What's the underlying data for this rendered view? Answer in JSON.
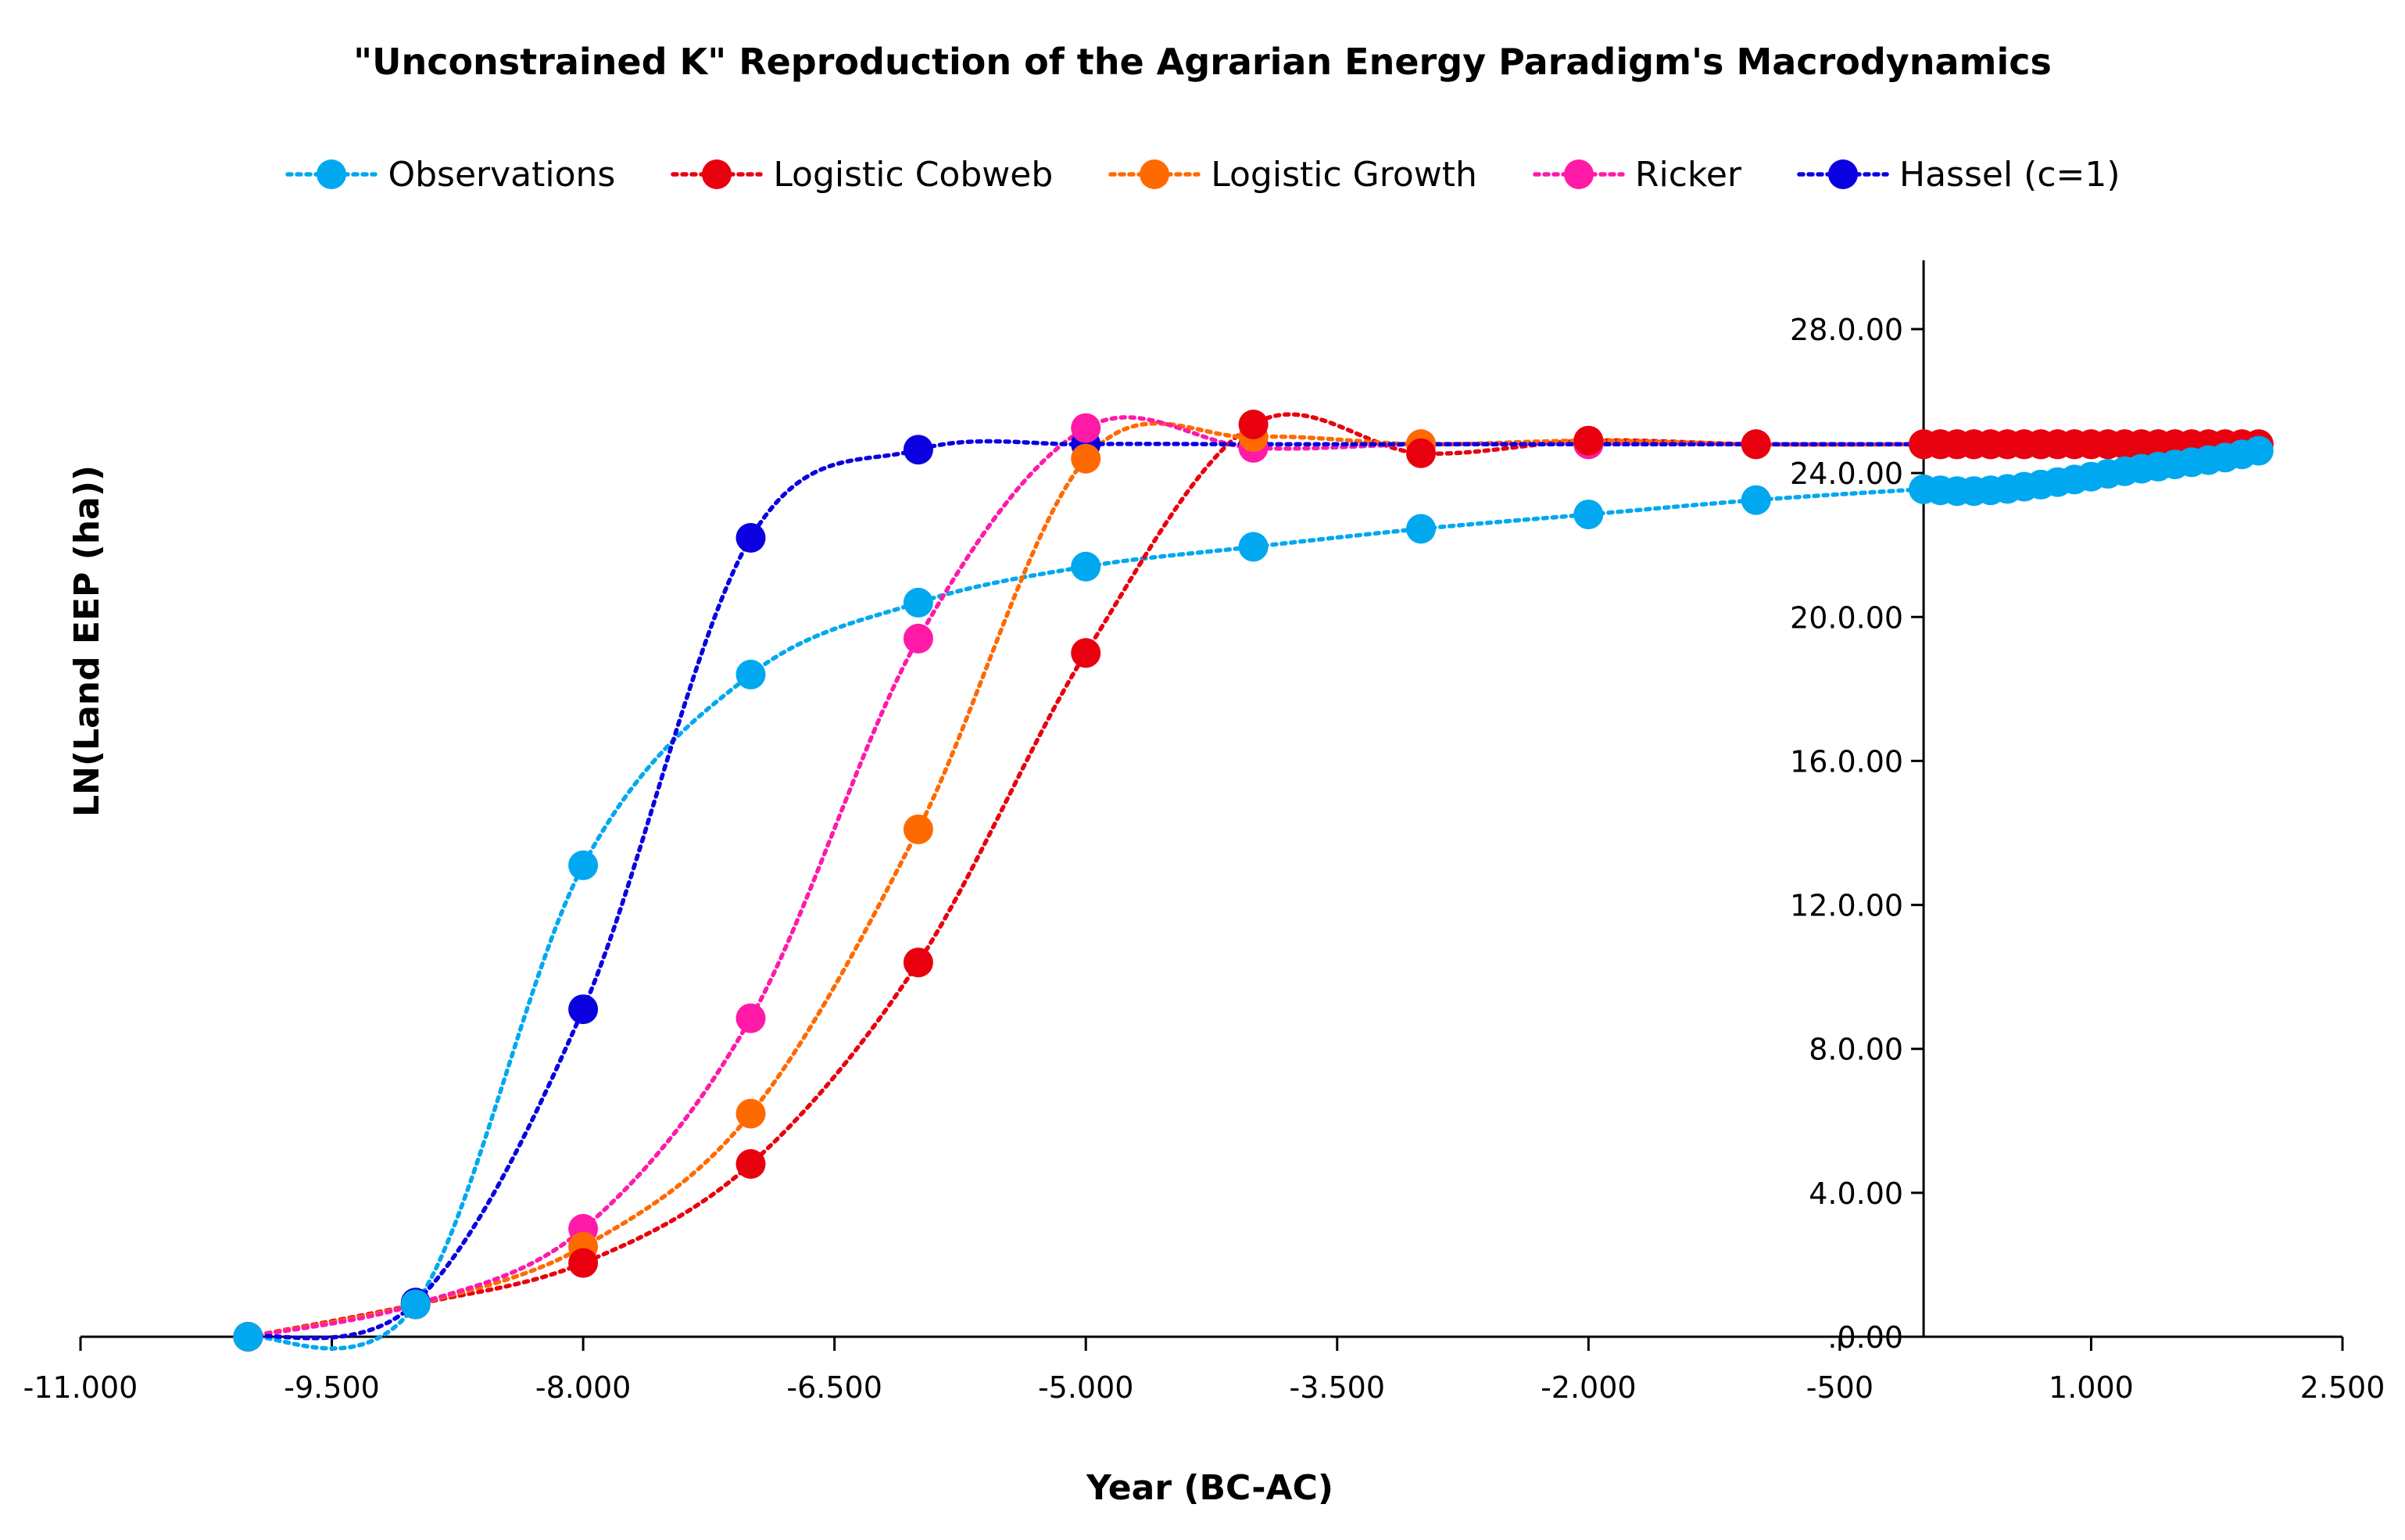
{
  "chart_data": {
    "type": "scatter",
    "title": "\"Unconstrained K\" Reproduction of the Agrarian Energy Paradigm's Macrodynamics",
    "xlabel": "Year (BC-AC)",
    "ylabel": "LN(Land EEP (ha))",
    "xlim": [
      -11000,
      2500
    ],
    "ylim": [
      0,
      28
    ],
    "x_ticks": [
      -11000,
      -9500,
      -8000,
      -6500,
      -5000,
      -3500,
      -2000,
      -500,
      1000,
      2500
    ],
    "x_tick_labels": [
      "-11.000",
      "-9.500",
      "-8.000",
      "-6.500",
      "-5.000",
      "-3.500",
      "-2.000",
      "-500",
      "1.000",
      "2.500"
    ],
    "y_ticks": [
      0,
      4,
      8,
      12,
      16,
      20,
      24,
      28
    ],
    "y_tick_labels": [
      ".0.00",
      "4.0.00",
      "8.0.00",
      "12.0.00",
      "16.0.00",
      "20.0.00",
      "24.0.00",
      "28.0.00"
    ],
    "y_axis_crosses_at_x": 0,
    "grid": false,
    "legend_position": "top",
    "line_style": "dotted smoothed",
    "series": [
      {
        "name": "Observations",
        "color": "#00a8f0",
        "x": [
          -10000,
          -9000,
          -8000,
          -7000,
          -6000,
          -5000,
          -4000,
          -3000,
          -2000,
          -1000,
          0,
          100,
          200,
          300,
          400,
          500,
          600,
          700,
          800,
          900,
          1000,
          1100,
          1200,
          1300,
          1400,
          1500,
          1600,
          1700,
          1800,
          1900,
          2000
        ],
        "y": [
          0.0,
          0.9,
          13.1,
          18.4,
          20.4,
          21.4,
          21.95,
          22.45,
          22.85,
          23.25,
          23.55,
          23.52,
          23.5,
          23.5,
          23.52,
          23.56,
          23.62,
          23.68,
          23.75,
          23.82,
          23.9,
          23.98,
          24.05,
          24.12,
          24.18,
          24.24,
          24.3,
          24.36,
          24.43,
          24.52,
          24.62
        ]
      },
      {
        "name": "Logistic Cobweb",
        "color": "#e8000f",
        "x": [
          -10000,
          -9000,
          -8000,
          -7000,
          -6000,
          -5000,
          -4000,
          -3000,
          -2000,
          -1000,
          0,
          100,
          200,
          300,
          400,
          500,
          600,
          700,
          800,
          900,
          1000,
          1100,
          1200,
          1300,
          1400,
          1500,
          1600,
          1700,
          1800,
          1900,
          2000
        ],
        "y": [
          0.0,
          0.9,
          2.05,
          4.8,
          10.4,
          19.0,
          25.35,
          24.55,
          24.9,
          24.8,
          24.8,
          24.8,
          24.8,
          24.8,
          24.8,
          24.8,
          24.8,
          24.8,
          24.8,
          24.8,
          24.8,
          24.8,
          24.8,
          24.8,
          24.8,
          24.8,
          24.8,
          24.8,
          24.8,
          24.8,
          24.8
        ]
      },
      {
        "name": "Logistic Growth",
        "color": "#ff6a00",
        "x": [
          -10000,
          -9000,
          -8000,
          -7000,
          -6000,
          -5000,
          -4000,
          -3000,
          -2000,
          -1000,
          0,
          100,
          200,
          300,
          400,
          500,
          600,
          700,
          800,
          900,
          1000,
          1100,
          1200,
          1300,
          1400,
          1500,
          1600,
          1700,
          1800,
          1900,
          2000
        ],
        "y": [
          0.0,
          0.9,
          2.5,
          6.2,
          14.1,
          24.4,
          25.0,
          24.8,
          24.9,
          24.8,
          24.8,
          24.8,
          24.8,
          24.8,
          24.8,
          24.8,
          24.8,
          24.8,
          24.8,
          24.8,
          24.8,
          24.8,
          24.8,
          24.8,
          24.8,
          24.8,
          24.8,
          24.8,
          24.8,
          24.8,
          24.8
        ]
      },
      {
        "name": "Ricker",
        "color": "#ff1aa8",
        "x": [
          -10000,
          -9000,
          -8000,
          -7000,
          -6000,
          -5000,
          -4000,
          -3000,
          -2000,
          -1000,
          0,
          100,
          200,
          300,
          400,
          500,
          600,
          700,
          800,
          900,
          1000,
          1100,
          1200,
          1300,
          1400,
          1500,
          1600,
          1700,
          1800,
          1900,
          2000
        ],
        "y": [
          0.0,
          0.9,
          3.0,
          8.85,
          19.4,
          25.25,
          24.7,
          24.8,
          24.8,
          24.8,
          24.8,
          24.8,
          24.8,
          24.8,
          24.8,
          24.8,
          24.8,
          24.8,
          24.8,
          24.8,
          24.8,
          24.8,
          24.8,
          24.8,
          24.8,
          24.8,
          24.8,
          24.8,
          24.8,
          24.8,
          24.8
        ]
      },
      {
        "name": "Hassel (c=1)",
        "color": "#0a00e0",
        "x": [
          -10000,
          -9000,
          -8000,
          -7000,
          -6000,
          -5000,
          -4000,
          -3000,
          -2000,
          -1000,
          0,
          100,
          200,
          300,
          400,
          500,
          600,
          700,
          800,
          900,
          1000,
          1100,
          1200,
          1300,
          1400,
          1500,
          1600,
          1700,
          1800,
          1900,
          2000
        ],
        "y": [
          0.0,
          0.95,
          9.1,
          22.2,
          24.65,
          24.8,
          24.8,
          24.8,
          24.8,
          24.8,
          24.8,
          24.8,
          24.8,
          24.8,
          24.8,
          24.8,
          24.8,
          24.8,
          24.8,
          24.8,
          24.8,
          24.8,
          24.8,
          24.8,
          24.8,
          24.8,
          24.8,
          24.8,
          24.8,
          24.8,
          24.8
        ]
      }
    ]
  }
}
